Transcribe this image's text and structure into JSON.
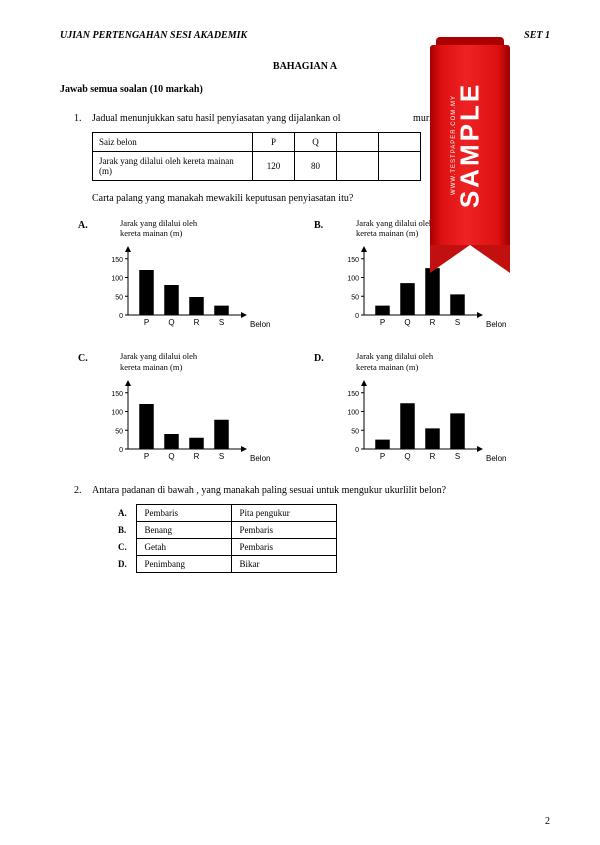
{
  "header": {
    "title": "UJIAN PERTENGAHAN SESI  AKADEMIK",
    "set": "SET 1"
  },
  "section_title": "BAHAGIAN A",
  "instruction": "Jawab semua soalan (10 markah)",
  "q1": {
    "num": "1.",
    "text_a": "Jadual menunjukkan satu hasil penyiasatan yang dijalankan ol",
    "text_b": " murid.",
    "table": {
      "row1_label": "Saiz belon",
      "row1_cols": [
        "P",
        "Q",
        "",
        ""
      ],
      "row2_label": "Jarak yang dilalui oleh kereta mainan (m)",
      "row2_cols": [
        "120",
        "80",
        "",
        ""
      ]
    },
    "subtext": "Carta palang yang manakah mewakili keputusan penyiasatan itu?",
    "chart_common": {
      "ylabel": "Jarak yang dilalui oleh\nkereta mainan (m)",
      "xlabel": "Belon",
      "categories": [
        "P",
        "Q",
        "R",
        "S"
      ],
      "yticks": [
        0,
        50,
        100,
        150
      ],
      "ylim": [
        0,
        160
      ],
      "bar_color": "#000000",
      "axis_color": "#000000",
      "text_color": "#000000",
      "title_fontsize": 8.5,
      "tick_fontsize": 7,
      "bar_width": 0.58
    },
    "charts": {
      "A": {
        "letter": "A.",
        "values": [
          120,
          80,
          48,
          25
        ]
      },
      "B": {
        "letter": "B.",
        "values": [
          25,
          85,
          125,
          55
        ]
      },
      "C": {
        "letter": "C.",
        "values": [
          120,
          40,
          30,
          78
        ]
      },
      "D": {
        "letter": "D.",
        "values": [
          25,
          122,
          55,
          95
        ]
      }
    }
  },
  "q2": {
    "num": "2.",
    "text": "Antara padanan di bawah , yang manakah paling sesuai untuk mengukur ukurlilit belon?",
    "rows": [
      {
        "opt": "A.",
        "c1": "Pembaris",
        "c2": "Pita pengukur"
      },
      {
        "opt": "B.",
        "c1": "Benang",
        "c2": "Pembaris"
      },
      {
        "opt": "C.",
        "c1": "Getah",
        "c2": "Pembaris"
      },
      {
        "opt": "D.",
        "c1": "Penimbang",
        "c2": "Bikar"
      }
    ]
  },
  "page_number": "2",
  "ribbon": {
    "main": "SAMPLE",
    "small": "WWW.TESTPAPER.COM.MY"
  }
}
